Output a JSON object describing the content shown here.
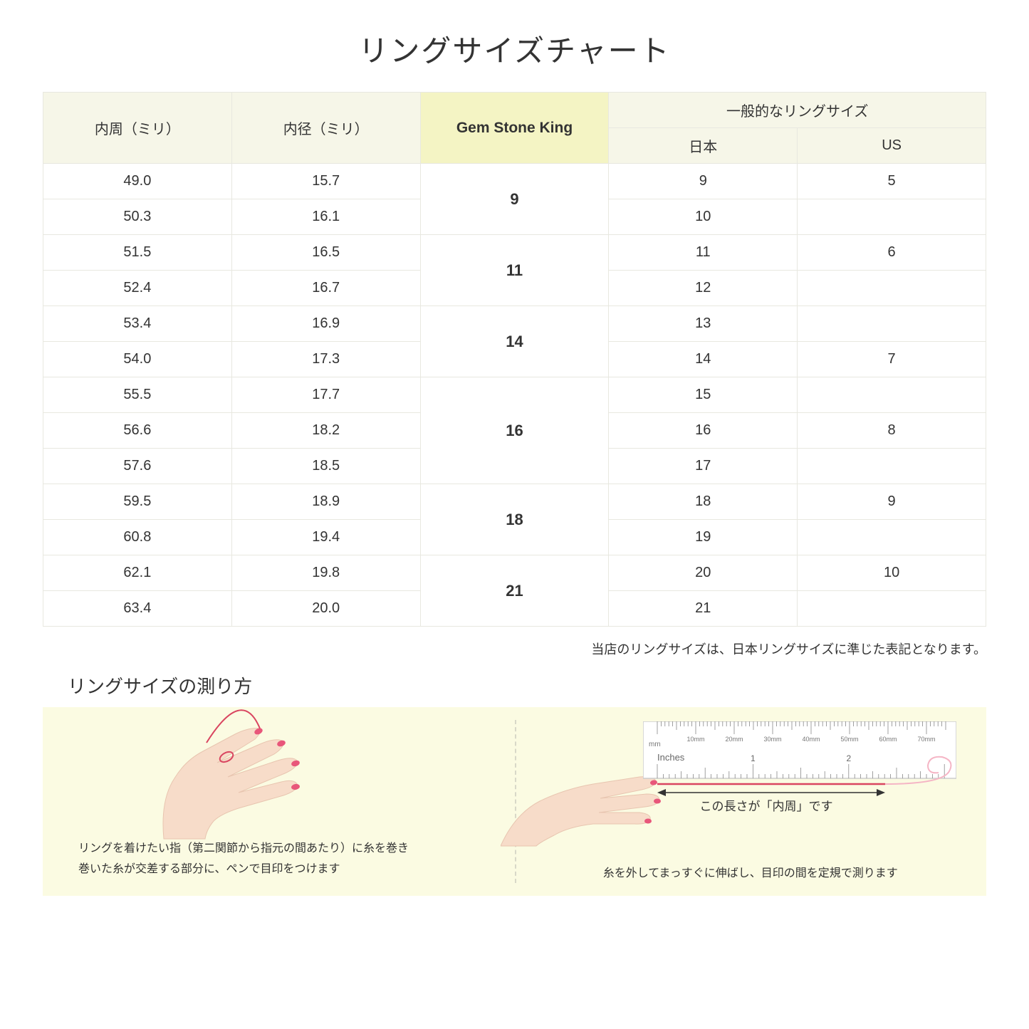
{
  "title": "リングサイズチャート",
  "table": {
    "header_circumference": "内周（ミリ）",
    "header_diameter": "内径（ミリ）",
    "header_gsk": "Gem Stone King",
    "header_general": "一般的なリングサイズ",
    "header_japan": "日本",
    "header_us": "US",
    "rows": [
      {
        "circ": "49.0",
        "dia": "15.7",
        "jp": "9",
        "us": "5"
      },
      {
        "circ": "50.3",
        "dia": "16.1",
        "jp": "10",
        "us": ""
      },
      {
        "circ": "51.5",
        "dia": "16.5",
        "jp": "11",
        "us": "6"
      },
      {
        "circ": "52.4",
        "dia": "16.7",
        "jp": "12",
        "us": ""
      },
      {
        "circ": "53.4",
        "dia": "16.9",
        "jp": "13",
        "us": ""
      },
      {
        "circ": "54.0",
        "dia": "17.3",
        "jp": "14",
        "us": "7"
      },
      {
        "circ": "55.5",
        "dia": "17.7",
        "jp": "15",
        "us": ""
      },
      {
        "circ": "56.6",
        "dia": "18.2",
        "jp": "16",
        "us": "8"
      },
      {
        "circ": "57.6",
        "dia": "18.5",
        "jp": "17",
        "us": ""
      },
      {
        "circ": "59.5",
        "dia": "18.9",
        "jp": "18",
        "us": "9"
      },
      {
        "circ": "60.8",
        "dia": "19.4",
        "jp": "19",
        "us": ""
      },
      {
        "circ": "62.1",
        "dia": "19.8",
        "jp": "20",
        "us": "10"
      },
      {
        "circ": "63.4",
        "dia": "20.0",
        "jp": "21",
        "us": ""
      }
    ],
    "gsk_groups": [
      {
        "label": "9",
        "span": 2
      },
      {
        "label": "11",
        "span": 2
      },
      {
        "label": "14",
        "span": 2
      },
      {
        "label": "16",
        "span": 3
      },
      {
        "label": "18",
        "span": 2
      },
      {
        "label": "21",
        "span": 2
      }
    ]
  },
  "note": "当店のリングサイズは、日本リングサイズに準じた表記となります。",
  "howto": {
    "title": "リングサイズの測り方",
    "left_text": "リングを着けたい指（第二関節から指元の間あたり）に糸を巻き\n巻いた糸が交差する部分に、ペンで目印をつけます",
    "right_text": "糸を外してまっすぐに伸ばし、目印の間を定規で測ります",
    "ruler_caption": "この長さが「内周」です",
    "ruler": {
      "mm_label": "mm",
      "inches_label": "Inches",
      "mm_marks": [
        "10mm",
        "20mm",
        "30mm",
        "40mm",
        "50mm",
        "60mm",
        "70mm"
      ],
      "inch_marks": [
        "1",
        "2"
      ]
    }
  },
  "colors": {
    "header_bg": "#f6f6e8",
    "highlight_bg": "#f4f4c4",
    "border": "#e8e8e0",
    "panel_bg": "#fbfbe2",
    "skin": "#f7dcc9",
    "skin_dark": "#e8c5b0",
    "nail": "#e8567a",
    "thread": "#d94560",
    "ruler_border": "#cccccc",
    "ruler_bg": "#ffffff"
  }
}
